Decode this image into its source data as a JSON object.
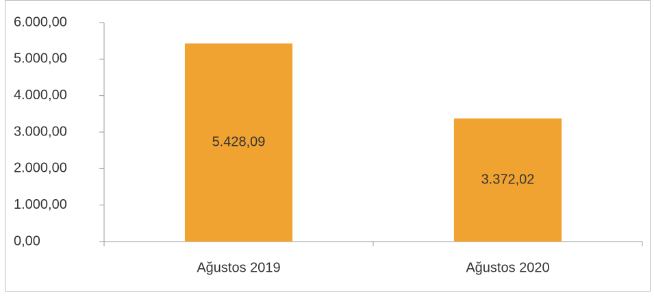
{
  "chart_data": {
    "type": "bar",
    "categories": [
      "Ağustos 2019",
      "Ağustos 2020"
    ],
    "values": [
      5428.09,
      3372.02
    ],
    "value_labels": [
      "5.428,09",
      "3.372,02"
    ],
    "color": "#f0a330",
    "ylim": [
      0,
      6000
    ],
    "yticks": [
      {
        "value": 0,
        "label": "0,00"
      },
      {
        "value": 1000,
        "label": "1.000,00"
      },
      {
        "value": 2000,
        "label": "2.000,00"
      },
      {
        "value": 3000,
        "label": "3.000,00"
      },
      {
        "value": 4000,
        "label": "4.000,00"
      },
      {
        "value": 5000,
        "label": "5.000,00"
      },
      {
        "value": 6000,
        "label": "6.000,00"
      }
    ],
    "grid": false
  }
}
